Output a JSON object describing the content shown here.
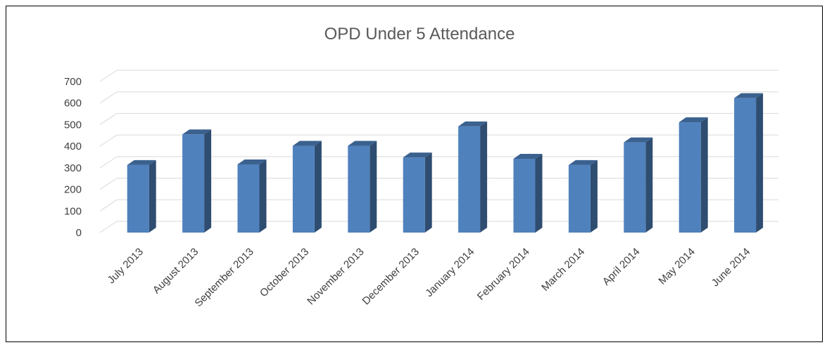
{
  "chart_data": {
    "type": "bar",
    "title": "OPD Under 5 Attendance",
    "categories": [
      "July 2013",
      "August 2013",
      "September 2013",
      "October 2013",
      "November 2013",
      "December 2013",
      "January 2014",
      "February 2014",
      "March 2014",
      "April 2014",
      "May 2014",
      "June 2014"
    ],
    "values": [
      313,
      455,
      316,
      402,
      402,
      348,
      492,
      342,
      313,
      418,
      511,
      623
    ],
    "color": "#4f81bd",
    "ylim": [
      0,
      700
    ],
    "yticks": [
      0,
      100,
      200,
      300,
      400,
      500,
      600,
      700
    ],
    "grid": true
  }
}
